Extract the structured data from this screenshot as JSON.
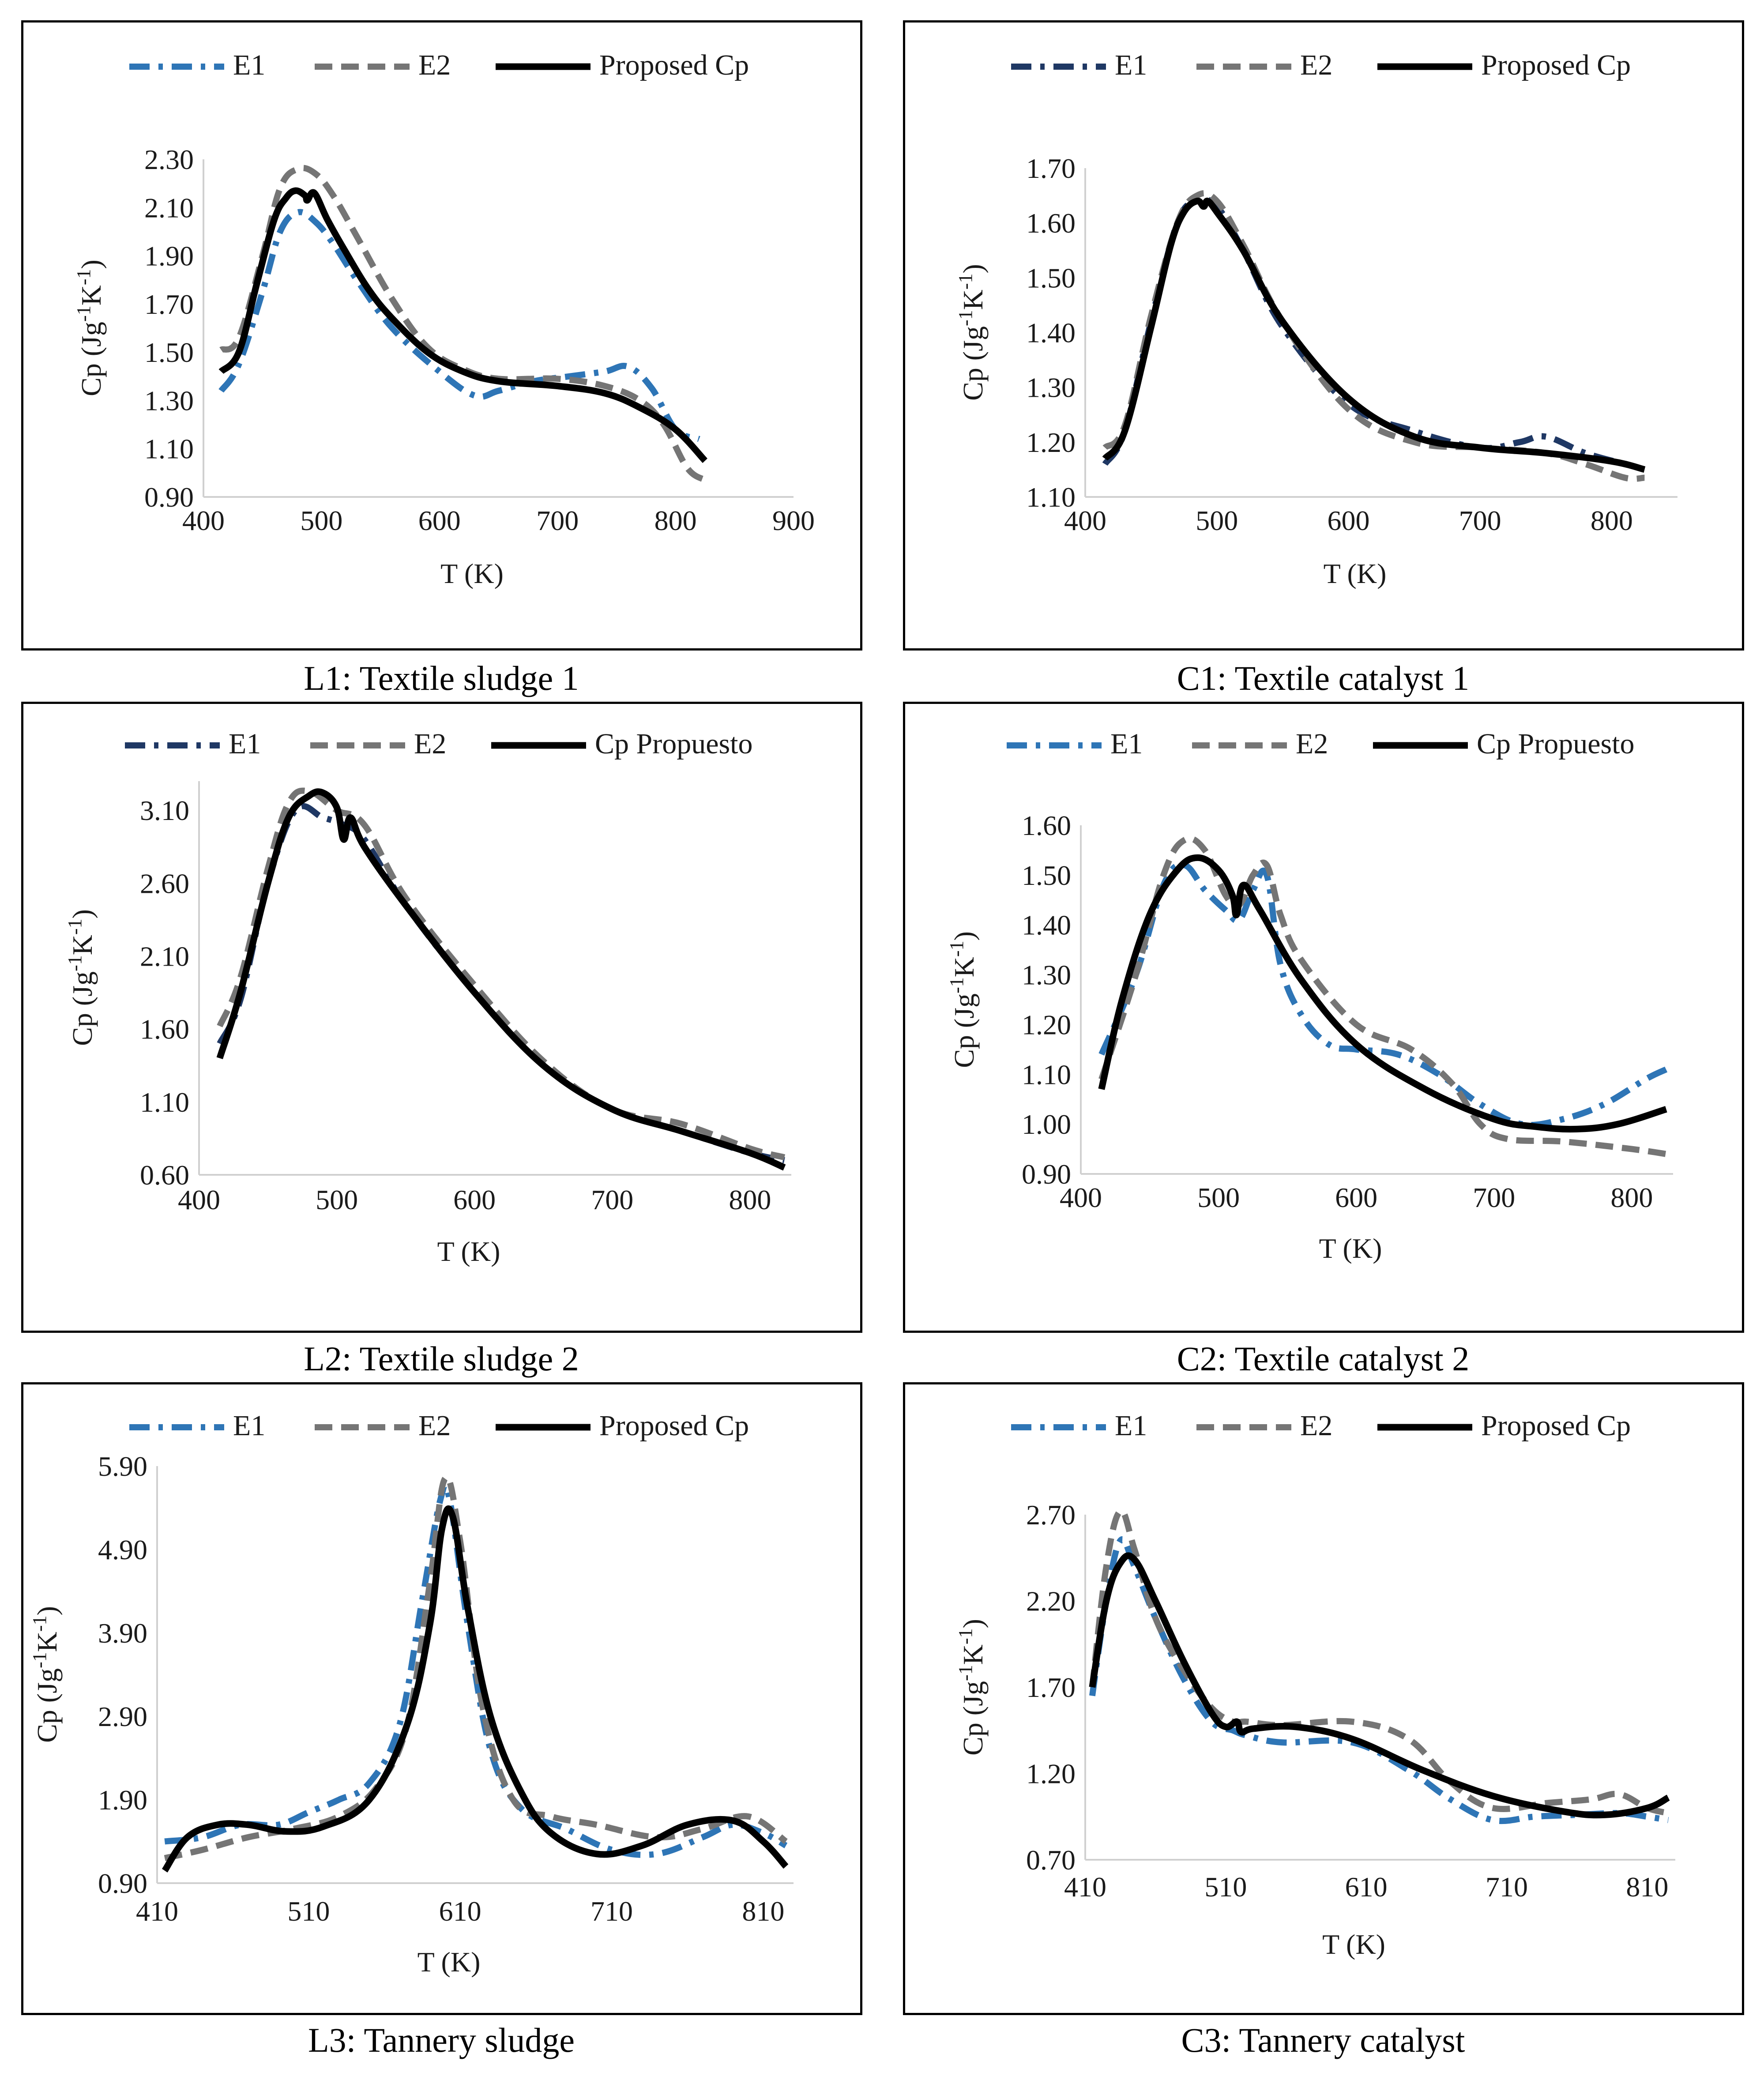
{
  "colors": {
    "black": "#000000",
    "grey": "#757575",
    "blue": "#2E75B6",
    "navy": "#1F3864",
    "darkblue": "#1F4E79"
  },
  "chart_data": [
    {
      "type": "line",
      "caption": "L1: Textile sludge 1",
      "xlabel": "T (K)",
      "ylabel": "Cp (Jg-1K-1)",
      "xlim": [
        400,
        900
      ],
      "xticks": [
        "400",
        "500",
        "600",
        "700",
        "800",
        "900"
      ],
      "ylim": [
        0.9,
        2.3
      ],
      "yticks": [
        "0.90",
        "1.10",
        "1.30",
        "1.50",
        "1.70",
        "1.90",
        "2.10",
        "2.30"
      ],
      "legend": [
        "E1",
        "E2",
        "Proposed Cp"
      ],
      "series": [
        {
          "name": "E1",
          "color": "#2E75B6",
          "style": "dashdot",
          "x": [
            415,
            430,
            450,
            465,
            480,
            495,
            510,
            530,
            560,
            600,
            630,
            650,
            680,
            710,
            740,
            760,
            780,
            800,
            820
          ],
          "y": [
            1.34,
            1.45,
            1.75,
            2.0,
            2.08,
            2.04,
            1.95,
            1.8,
            1.6,
            1.42,
            1.32,
            1.34,
            1.38,
            1.4,
            1.42,
            1.44,
            1.35,
            1.18,
            1.14
          ]
        },
        {
          "name": "E2",
          "color": "#757575",
          "style": "dash",
          "x": [
            415,
            430,
            450,
            465,
            480,
            495,
            510,
            530,
            560,
            590,
            620,
            650,
            700,
            740,
            770,
            790,
            810,
            825
          ],
          "y": [
            1.51,
            1.56,
            1.9,
            2.18,
            2.26,
            2.24,
            2.15,
            1.98,
            1.72,
            1.52,
            1.43,
            1.39,
            1.39,
            1.36,
            1.3,
            1.2,
            1.02,
            0.97
          ]
        },
        {
          "name": "Proposed Cp",
          "color": "#000000",
          "style": "solid",
          "x": [
            415,
            430,
            445,
            460,
            470,
            478,
            486,
            488,
            494,
            505,
            520,
            540,
            560,
            590,
            620,
            650,
            700,
            740,
            770,
            800,
            825
          ],
          "y": [
            1.42,
            1.5,
            1.78,
            2.05,
            2.14,
            2.17,
            2.15,
            2.13,
            2.16,
            2.05,
            1.92,
            1.76,
            1.64,
            1.5,
            1.42,
            1.38,
            1.36,
            1.33,
            1.27,
            1.18,
            1.05
          ]
        }
      ]
    },
    {
      "type": "line",
      "caption": "C1: Textile catalyst 1",
      "xlabel": "T (K)",
      "ylabel": "Cp (Jg-1K-1)",
      "xlim": [
        400,
        850
      ],
      "xticks": [
        "400",
        "500",
        "600",
        "700",
        "800"
      ],
      "ylim": [
        1.1,
        1.7
      ],
      "yticks": [
        "1.10",
        "1.20",
        "1.30",
        "1.40",
        "1.50",
        "1.60",
        "1.70"
      ],
      "legend": [
        "E1",
        "E2",
        "Proposed Cp"
      ],
      "series": [
        {
          "name": "E1",
          "color": "#1F3864",
          "style": "dashdot",
          "x": [
            415,
            430,
            450,
            470,
            485,
            500,
            520,
            550,
            600,
            650,
            700,
            730,
            750,
            780,
            810
          ],
          "y": [
            1.16,
            1.22,
            1.42,
            1.6,
            1.64,
            1.63,
            1.55,
            1.41,
            1.27,
            1.22,
            1.19,
            1.2,
            1.21,
            1.18,
            1.16
          ]
        },
        {
          "name": "E2",
          "color": "#757575",
          "style": "dash",
          "x": [
            415,
            430,
            450,
            470,
            485,
            500,
            520,
            550,
            600,
            650,
            700,
            750,
            780,
            810,
            825
          ],
          "y": [
            1.19,
            1.23,
            1.43,
            1.6,
            1.65,
            1.64,
            1.56,
            1.42,
            1.26,
            1.2,
            1.19,
            1.18,
            1.16,
            1.135,
            1.135
          ]
        },
        {
          "name": "Proposed Cp",
          "color": "#000000",
          "style": "solid",
          "x": [
            415,
            430,
            450,
            465,
            475,
            485,
            490,
            493,
            500,
            520,
            550,
            600,
            650,
            700,
            750,
            800,
            825
          ],
          "y": [
            1.17,
            1.22,
            1.41,
            1.56,
            1.62,
            1.64,
            1.63,
            1.64,
            1.62,
            1.55,
            1.42,
            1.28,
            1.21,
            1.19,
            1.18,
            1.165,
            1.15
          ]
        }
      ]
    },
    {
      "type": "line",
      "caption": "L2: Textile sludge 2",
      "xlabel": "T (K)",
      "ylabel": "Cp (Jg-1K-1)",
      "xlim": [
        400,
        830
      ],
      "xticks": [
        "400",
        "500",
        "600",
        "700",
        "800"
      ],
      "ylim": [
        0.6,
        3.3
      ],
      "yticks": [
        "0.60",
        "1.10",
        "1.60",
        "2.10",
        "2.60",
        "3.10"
      ],
      "legend": [
        "E1",
        "E2",
        "Cp Propuesto"
      ],
      "series": [
        {
          "name": "E1",
          "color": "#1F3864",
          "style": "dashdot",
          "x": [
            415,
            430,
            450,
            470,
            490,
            505,
            520,
            550,
            600,
            650,
            700,
            750,
            800,
            825
          ],
          "y": [
            1.5,
            1.8,
            2.6,
            3.1,
            3.05,
            3.0,
            2.9,
            2.45,
            1.85,
            1.35,
            1.05,
            0.9,
            0.75,
            0.7
          ]
        },
        {
          "name": "E2",
          "color": "#757575",
          "style": "dash",
          "x": [
            415,
            430,
            450,
            465,
            480,
            500,
            520,
            550,
            600,
            650,
            700,
            750,
            800,
            825
          ],
          "y": [
            1.62,
            1.95,
            2.7,
            3.15,
            3.23,
            3.1,
            3.0,
            2.5,
            1.9,
            1.38,
            1.05,
            0.95,
            0.78,
            0.72
          ]
        },
        {
          "name": "Cp Propuesto",
          "color": "#000000",
          "style": "solid",
          "x": [
            415,
            430,
            450,
            465,
            480,
            490,
            500,
            505,
            510,
            520,
            550,
            600,
            650,
            700,
            750,
            800,
            825
          ],
          "y": [
            1.4,
            1.85,
            2.6,
            3.05,
            3.2,
            3.22,
            3.12,
            2.9,
            3.05,
            2.85,
            2.45,
            1.85,
            1.35,
            1.05,
            0.9,
            0.75,
            0.65
          ]
        }
      ]
    },
    {
      "type": "line",
      "caption": "C2: Textile catalyst 2",
      "xlabel": "T (K)",
      "ylabel": "Cp (Jg-1K-1)",
      "xlim": [
        400,
        830
      ],
      "xticks": [
        "400",
        "500",
        "600",
        "700",
        "800"
      ],
      "ylim": [
        0.9,
        1.6
      ],
      "yticks": [
        "0.90",
        "1.00",
        "1.10",
        "1.20",
        "1.30",
        "1.40",
        "1.50",
        "1.60"
      ],
      "legend": [
        "E1",
        "E2",
        "Cp Propuesto"
      ],
      "series": [
        {
          "name": "E1",
          "color": "#2E75B6",
          "style": "dashdot",
          "x": [
            415,
            440,
            460,
            475,
            490,
            505,
            515,
            525,
            535,
            545,
            560,
            580,
            600,
            630,
            660,
            690,
            720,
            750,
            780,
            810,
            825
          ],
          "y": [
            1.14,
            1.3,
            1.48,
            1.52,
            1.47,
            1.43,
            1.41,
            1.47,
            1.5,
            1.32,
            1.22,
            1.16,
            1.15,
            1.14,
            1.1,
            1.04,
            1.0,
            1.01,
            1.04,
            1.09,
            1.11
          ]
        },
        {
          "name": "E2",
          "color": "#757575",
          "style": "dash",
          "x": [
            415,
            440,
            460,
            475,
            490,
            505,
            515,
            525,
            535,
            545,
            560,
            600,
            640,
            670,
            690,
            710,
            750,
            800,
            825
          ],
          "y": [
            1.09,
            1.3,
            1.5,
            1.57,
            1.55,
            1.46,
            1.44,
            1.5,
            1.52,
            1.42,
            1.33,
            1.2,
            1.15,
            1.08,
            1.0,
            0.97,
            0.965,
            0.95,
            0.94
          ]
        },
        {
          "name": "Cp Propuesto",
          "color": "#000000",
          "style": "solid",
          "x": [
            415,
            430,
            450,
            470,
            485,
            500,
            510,
            513,
            518,
            530,
            560,
            600,
            650,
            700,
            730,
            760,
            790,
            825
          ],
          "y": [
            1.07,
            1.25,
            1.42,
            1.51,
            1.535,
            1.51,
            1.46,
            1.42,
            1.48,
            1.43,
            1.29,
            1.16,
            1.07,
            1.01,
            0.995,
            0.99,
            1.0,
            1.03
          ]
        }
      ]
    },
    {
      "type": "line",
      "caption": "L3: Tannery sludge",
      "xlabel": "T (K)",
      "ylabel": "Cp (Jg-1K-1)",
      "xlim": [
        410,
        830
      ],
      "xticks": [
        "410",
        "510",
        "610",
        "710",
        "810"
      ],
      "ylim": [
        0.9,
        5.9
      ],
      "yticks": [
        "0.90",
        "1.90",
        "2.90",
        "3.90",
        "4.90",
        "5.90"
      ],
      "legend": [
        "E1",
        "E2",
        "Proposed Cp"
      ],
      "series": [
        {
          "name": "E1",
          "color": "#2E75B6",
          "style": "dashdot",
          "x": [
            415,
            440,
            465,
            490,
            510,
            530,
            550,
            570,
            585,
            597,
            603,
            615,
            630,
            650,
            680,
            710,
            740,
            770,
            790,
            810,
            825
          ],
          "y": [
            1.4,
            1.45,
            1.6,
            1.6,
            1.75,
            1.9,
            2.1,
            2.8,
            4.3,
            5.5,
            5.5,
            4.0,
            2.5,
            1.8,
            1.55,
            1.3,
            1.25,
            1.45,
            1.6,
            1.5,
            1.35
          ]
        },
        {
          "name": "E2",
          "color": "#757575",
          "style": "dash",
          "x": [
            415,
            440,
            470,
            500,
            530,
            555,
            575,
            590,
            600,
            610,
            625,
            645,
            670,
            700,
            740,
            770,
            800,
            825
          ],
          "y": [
            1.2,
            1.3,
            1.45,
            1.55,
            1.7,
            2.05,
            2.8,
            4.5,
            5.75,
            5.0,
            3.0,
            1.9,
            1.7,
            1.6,
            1.45,
            1.55,
            1.7,
            1.4
          ]
        },
        {
          "name": "Proposed Cp",
          "color": "#000000",
          "style": "solid",
          "x": [
            415,
            430,
            450,
            470,
            495,
            520,
            550,
            575,
            590,
            598,
            605,
            615,
            630,
            650,
            670,
            700,
            730,
            760,
            790,
            810,
            825
          ],
          "y": [
            1.05,
            1.45,
            1.6,
            1.6,
            1.52,
            1.58,
            1.9,
            2.8,
            4.0,
            5.15,
            5.3,
            4.2,
            2.9,
            2.0,
            1.5,
            1.25,
            1.35,
            1.6,
            1.65,
            1.4,
            1.1
          ]
        }
      ]
    },
    {
      "type": "line",
      "caption": "C3: Tannery catalyst",
      "xlabel": "T (K)",
      "ylabel": "Cp (Jg-1K-1)",
      "xlim": [
        410,
        830
      ],
      "xticks": [
        "410",
        "510",
        "610",
        "710",
        "810"
      ],
      "ylim": [
        0.7,
        2.7
      ],
      "yticks": [
        "0.70",
        "1.20",
        "1.70",
        "2.20",
        "2.70"
      ],
      "legend": [
        "E1",
        "E2",
        "Proposed Cp"
      ],
      "series": [
        {
          "name": "E1",
          "color": "#2E75B6",
          "style": "dashdot",
          "x": [
            415,
            425,
            435,
            445,
            460,
            480,
            500,
            515,
            525,
            550,
            600,
            640,
            670,
            700,
            730,
            760,
            790,
            810,
            825
          ],
          "y": [
            1.65,
            2.2,
            2.55,
            2.4,
            2.1,
            1.75,
            1.5,
            1.45,
            1.42,
            1.38,
            1.38,
            1.22,
            1.05,
            0.93,
            0.95,
            0.96,
            0.97,
            0.95,
            0.93
          ]
        },
        {
          "name": "E2",
          "color": "#757575",
          "style": "dash",
          "x": [
            415,
            425,
            435,
            445,
            460,
            480,
            500,
            515,
            525,
            550,
            600,
            640,
            670,
            700,
            740,
            770,
            790,
            810,
            825
          ],
          "y": [
            1.7,
            2.4,
            2.72,
            2.5,
            2.1,
            1.8,
            1.58,
            1.5,
            1.5,
            1.48,
            1.5,
            1.4,
            1.15,
            1.0,
            1.03,
            1.05,
            1.08,
            1.0,
            0.97
          ]
        },
        {
          "name": "Proposed Cp",
          "color": "#000000",
          "style": "solid",
          "x": [
            415,
            425,
            435,
            445,
            460,
            480,
            500,
            510,
            518,
            521,
            530,
            560,
            600,
            650,
            700,
            750,
            780,
            810,
            825
          ],
          "y": [
            1.7,
            2.2,
            2.42,
            2.44,
            2.2,
            1.85,
            1.55,
            1.47,
            1.5,
            1.44,
            1.46,
            1.47,
            1.4,
            1.22,
            1.07,
            0.98,
            0.96,
            1.0,
            1.06
          ]
        }
      ]
    }
  ]
}
